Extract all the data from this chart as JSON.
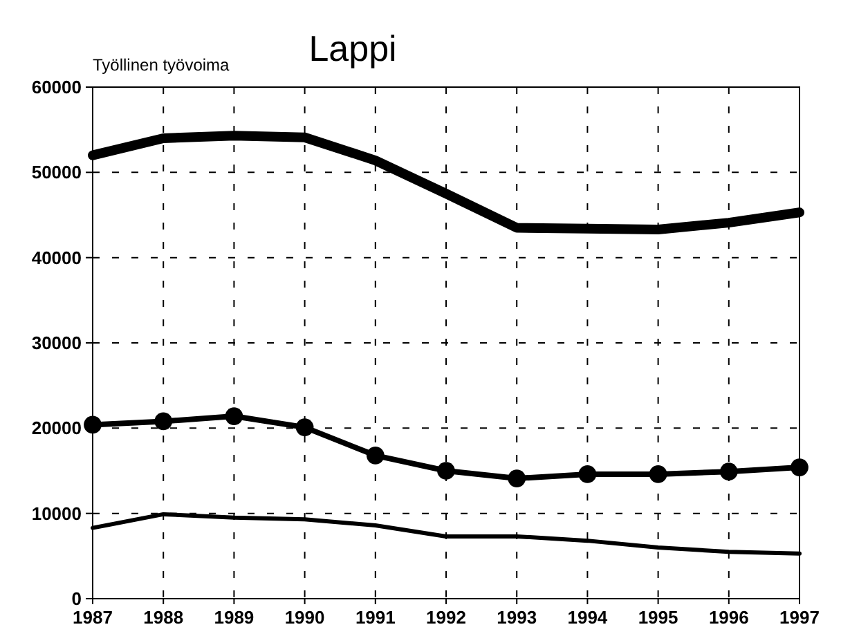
{
  "chart_data": {
    "type": "line",
    "title": "Lappi",
    "ylabel": "Työllinen työvoima",
    "x": [
      1987,
      1988,
      1989,
      1990,
      1991,
      1992,
      1993,
      1994,
      1995,
      1996,
      1997
    ],
    "xlim": [
      1987,
      1997
    ],
    "xticks": [
      1987,
      1988,
      1989,
      1990,
      1991,
      1992,
      1993,
      1994,
      1995,
      1996,
      1997
    ],
    "ylim": [
      0,
      60000
    ],
    "yticks": [
      0,
      10000,
      20000,
      30000,
      40000,
      50000,
      60000
    ],
    "grid": true,
    "line_style": "solid",
    "series": [
      {
        "color": "#000000",
        "marker": "none",
        "values": [
          52000,
          54000,
          54300,
          54100,
          51400,
          47500,
          43500,
          43400,
          43300,
          44100,
          45300
        ]
      },
      {
        "color": "#000000",
        "marker": "circle",
        "values": [
          20400,
          20800,
          21400,
          20100,
          16800,
          15000,
          14100,
          14600,
          14600,
          14900,
          15400
        ]
      },
      {
        "color": "#000000",
        "marker": "none",
        "values": [
          8300,
          9900,
          9500,
          9300,
          8600,
          7300,
          7300,
          6800,
          6000,
          5500,
          5300
        ]
      }
    ]
  }
}
